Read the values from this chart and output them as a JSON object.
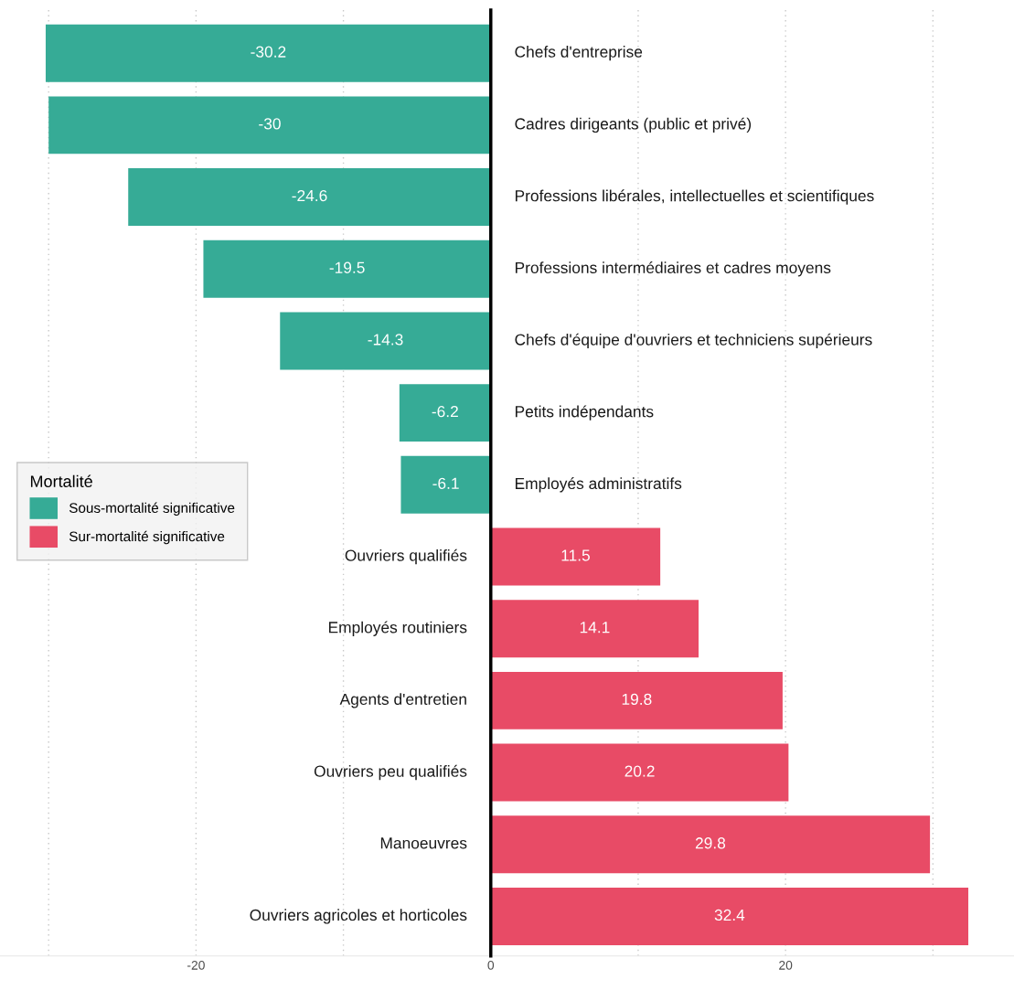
{
  "chart_data": {
    "type": "bar",
    "orientation": "horizontal",
    "categories": [
      "Chefs d'entreprise",
      "Cadres dirigeants (public et privé)",
      "Professions libérales, intellectuelles et scientifiques",
      "Professions intermédiaires et cadres moyens",
      "Chefs d'équipe d'ouvriers et techniciens supérieurs",
      "Petits indépendants",
      "Employés administratifs",
      "Ouvriers qualifiés",
      "Employés routiniers",
      "Agents d'entretien",
      "Ouvriers peu qualifiés",
      "Manoeuvres",
      "Ouvriers agricoles et horticoles"
    ],
    "series": [
      {
        "name": "Sous-mortalité significative",
        "color": "#36ab96",
        "values": [
          -30.2,
          -30,
          -24.6,
          -19.5,
          -14.3,
          -6.2,
          -6.1,
          null,
          null,
          null,
          null,
          null,
          null
        ]
      },
      {
        "name": "Sur-mortalité significative",
        "color": "#e84b66",
        "values": [
          null,
          null,
          null,
          null,
          null,
          null,
          null,
          11.5,
          14.1,
          19.8,
          20.2,
          29.8,
          32.4
        ]
      }
    ],
    "legend_title": "Mortalité",
    "legend": "left",
    "data_labels": true,
    "xlim": [
      -33.3,
      35.5
    ],
    "xticks": [
      {
        "value": -30,
        "label": null
      },
      -20,
      {
        "value": -10,
        "label": null
      },
      0,
      {
        "value": 10,
        "label": null
      },
      20,
      {
        "value": 30,
        "label": null
      }
    ],
    "grid": "x"
  }
}
